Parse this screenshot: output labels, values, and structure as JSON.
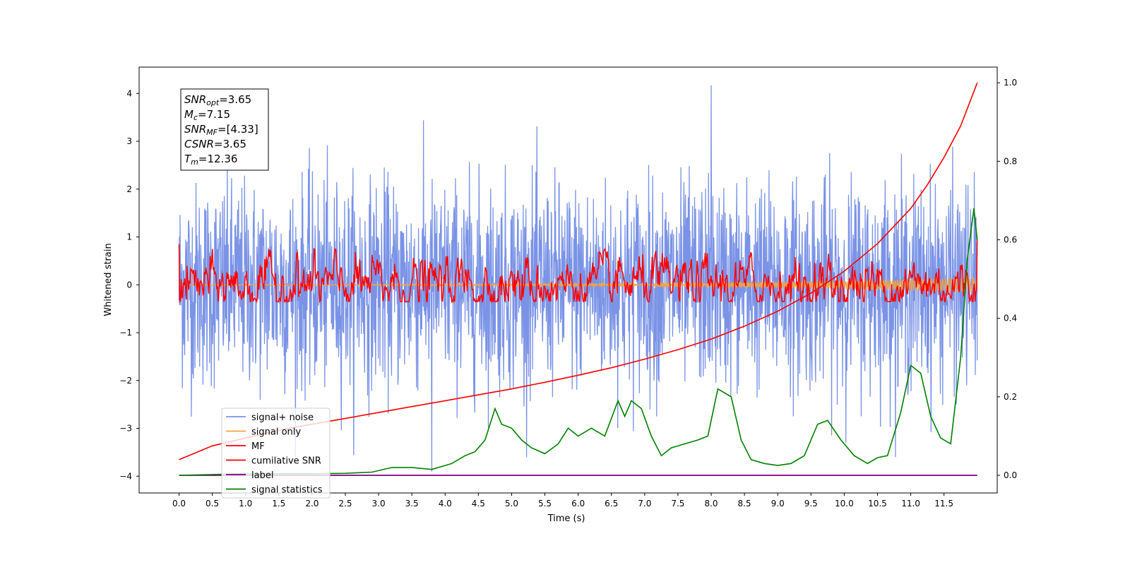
{
  "chart_data": {
    "type": "line",
    "xlabel": "Time (s)",
    "ylabel": "Whitened strain",
    "xlim": [
      -0.6,
      12.3
    ],
    "ylim": [
      -4.35,
      4.55
    ],
    "y2lim": [
      -0.045,
      1.04
    ],
    "x_ticks": [
      0.0,
      0.5,
      1.0,
      1.5,
      2.0,
      2.5,
      3.0,
      3.5,
      4.0,
      4.5,
      5.0,
      5.5,
      6.0,
      6.5,
      7.0,
      7.5,
      8.0,
      8.5,
      9.0,
      9.5,
      10.0,
      10.5,
      11.0,
      11.5
    ],
    "x_tick_labels": [
      "0.0",
      "0.5",
      "1.0",
      "1.5",
      "2.0",
      "2.5",
      "3.0",
      "3.5",
      "4.0",
      "4.5",
      "5.0",
      "5.5",
      "6.0",
      "6.5",
      "7.0",
      "7.5",
      "8.0",
      "8.5",
      "9.0",
      "9.5",
      "10.0",
      "10.5",
      "11.0",
      "11.5"
    ],
    "y_ticks": [
      -4,
      -3,
      -2,
      -1,
      0,
      1,
      2,
      3,
      4
    ],
    "y_tick_labels": [
      "−4",
      "−3",
      "−2",
      "−1",
      "0",
      "1",
      "2",
      "3",
      "4"
    ],
    "y2_ticks": [
      0.0,
      0.2,
      0.4,
      0.6,
      0.8,
      1.0
    ],
    "y2_tick_labels": [
      "0.0",
      "0.2",
      "0.4",
      "0.6",
      "0.8",
      "1.0"
    ],
    "grid": false,
    "legend_position": "lower-left",
    "colors": {
      "signal_noise": "#7a93e6",
      "signal_only": "#f5a340",
      "mf": "#ff0000",
      "csnr": "#ff0000",
      "label": "#800080",
      "stats": "#008000"
    },
    "info_box": [
      {
        "base": "SNR",
        "sub": "opt",
        "rest": "=3.65"
      },
      {
        "base": "M",
        "sub": "c",
        "rest": "=7.15"
      },
      {
        "base": "SNR",
        "sub": "MF",
        "rest": "=[4.33]"
      },
      {
        "base": "CSNR",
        "sub": "",
        "rest": "=3.65"
      },
      {
        "base": "T",
        "sub": "m",
        "rest": "=12.36"
      }
    ],
    "series": [
      {
        "name": "signal+ noise",
        "axis": "left",
        "x_start": 0.0,
        "x_end": 12.0,
        "envelope_low": -2.4,
        "envelope_high": 2.4,
        "peak_max": 4.17,
        "peak_min": -3.9
      },
      {
        "name": "signal only",
        "axis": "left",
        "x": [
          0.0,
          12.0
        ],
        "y": [
          0.0,
          0.0
        ],
        "amplitude_end": 0.15
      },
      {
        "name": "MF",
        "axis": "left",
        "x_start": 0.0,
        "x_end": 12.0,
        "envelope_low": -0.35,
        "envelope_high": 0.4,
        "start_value": 0.85,
        "end_value": 0.95
      },
      {
        "name": "cumilative SNR",
        "axis": "right",
        "x": [
          0.0,
          0.5,
          1.0,
          1.5,
          2.0,
          2.5,
          3.0,
          3.5,
          4.0,
          4.5,
          5.0,
          5.5,
          6.0,
          6.5,
          7.0,
          7.5,
          8.0,
          8.5,
          9.0,
          9.5,
          10.0,
          10.5,
          11.0,
          11.25,
          11.5,
          11.75,
          12.0
        ],
        "y": [
          0.04,
          0.075,
          0.095,
          0.115,
          0.13,
          0.145,
          0.16,
          0.175,
          0.19,
          0.205,
          0.22,
          0.237,
          0.255,
          0.274,
          0.296,
          0.32,
          0.347,
          0.38,
          0.418,
          0.464,
          0.52,
          0.59,
          0.68,
          0.74,
          0.81,
          0.89,
          1.0
        ]
      },
      {
        "name": "label",
        "axis": "right",
        "x": [
          0.0,
          12.0
        ],
        "y": [
          0.0,
          0.0
        ]
      },
      {
        "name": "signal statistics",
        "axis": "right",
        "x": [
          0.0,
          0.5,
          1.0,
          1.5,
          2.0,
          2.5,
          2.9,
          3.2,
          3.5,
          3.8,
          4.1,
          4.3,
          4.45,
          4.6,
          4.75,
          4.85,
          5.0,
          5.15,
          5.3,
          5.5,
          5.7,
          5.85,
          6.0,
          6.2,
          6.4,
          6.6,
          6.7,
          6.8,
          6.95,
          7.1,
          7.25,
          7.4,
          7.6,
          7.8,
          7.95,
          8.1,
          8.3,
          8.45,
          8.6,
          8.8,
          9.0,
          9.2,
          9.4,
          9.6,
          9.75,
          9.95,
          10.15,
          10.35,
          10.5,
          10.65,
          10.85,
          11.0,
          11.15,
          11.3,
          11.45,
          11.6,
          11.75,
          11.85,
          11.95,
          12.0
        ],
        "y": [
          0.0,
          0.002,
          0.004,
          0.004,
          0.004,
          0.005,
          0.008,
          0.02,
          0.02,
          0.015,
          0.03,
          0.05,
          0.06,
          0.09,
          0.17,
          0.13,
          0.12,
          0.09,
          0.07,
          0.055,
          0.08,
          0.12,
          0.1,
          0.12,
          0.1,
          0.19,
          0.15,
          0.19,
          0.17,
          0.1,
          0.05,
          0.07,
          0.08,
          0.09,
          0.1,
          0.22,
          0.2,
          0.09,
          0.04,
          0.03,
          0.025,
          0.03,
          0.05,
          0.13,
          0.14,
          0.09,
          0.05,
          0.03,
          0.045,
          0.05,
          0.16,
          0.28,
          0.26,
          0.15,
          0.095,
          0.08,
          0.3,
          0.55,
          0.68,
          0.6
        ]
      }
    ]
  }
}
